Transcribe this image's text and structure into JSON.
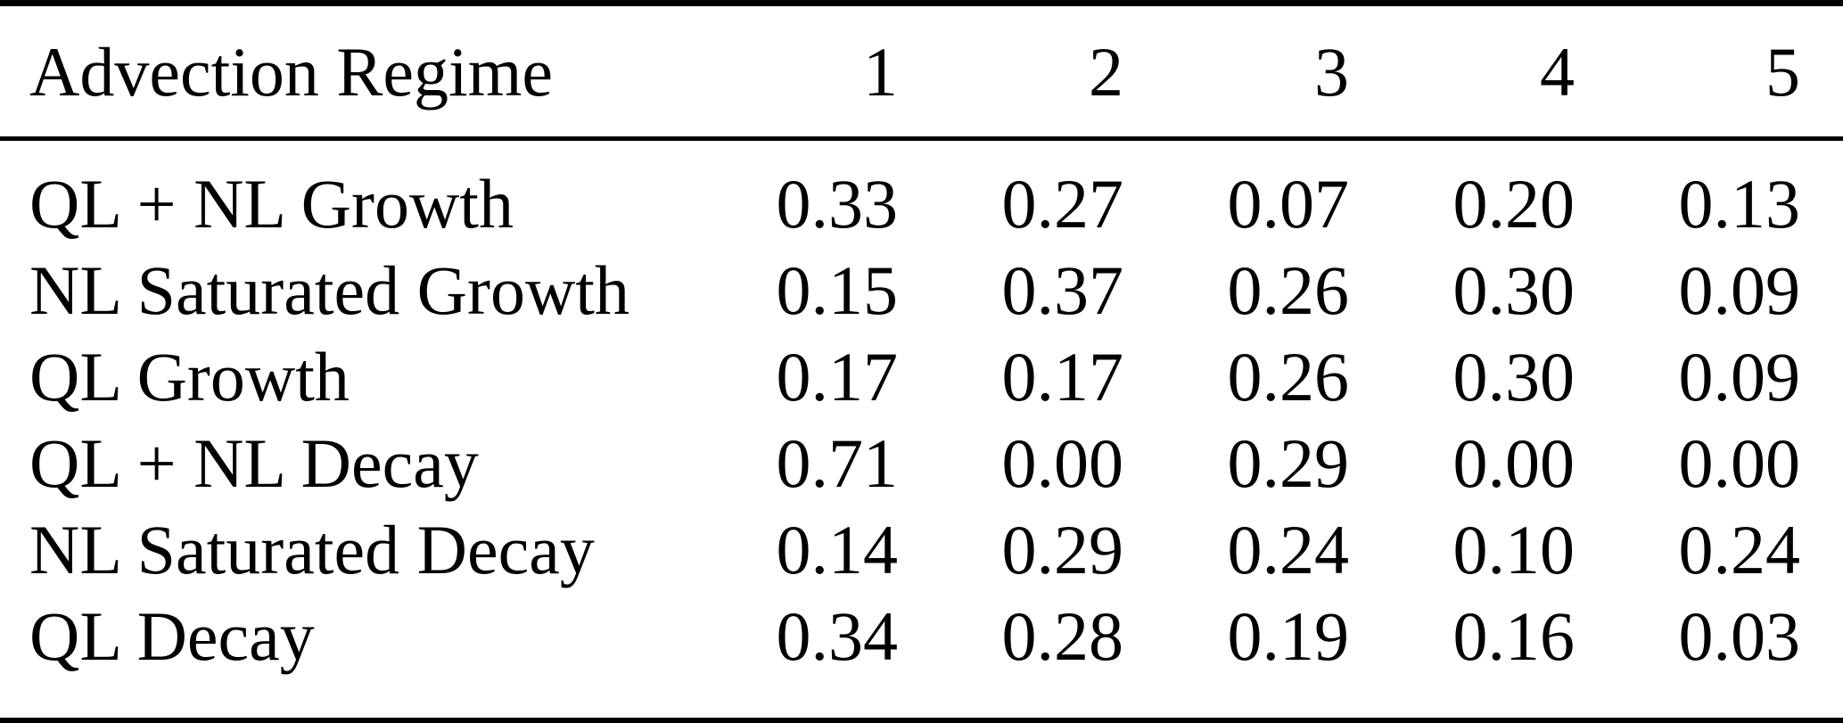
{
  "table": {
    "header": {
      "label": "Advection Regime",
      "columns": [
        "1",
        "2",
        "3",
        "4",
        "5"
      ]
    },
    "rows": [
      {
        "label": "QL + NL Growth",
        "values": [
          "0.33",
          "0.27",
          "0.07",
          "0.20",
          "0.13"
        ]
      },
      {
        "label": "NL Saturated Growth",
        "values": [
          "0.15",
          "0.37",
          "0.26",
          "0.30",
          "0.09"
        ]
      },
      {
        "label": "QL Growth",
        "values": [
          "0.17",
          "0.17",
          "0.26",
          "0.30",
          "0.09"
        ]
      },
      {
        "label": "QL + NL Decay",
        "values": [
          "0.71",
          "0.00",
          "0.29",
          "0.00",
          "0.00"
        ]
      },
      {
        "label": "NL Saturated Decay",
        "values": [
          "0.14",
          "0.29",
          "0.24",
          "0.10",
          "0.24"
        ]
      },
      {
        "label": "QL Decay",
        "values": [
          "0.34",
          "0.28",
          "0.19",
          "0.16",
          "0.03"
        ]
      }
    ]
  },
  "colors": {
    "background": "#ffffff",
    "text": "#000000",
    "rule": "#000000"
  },
  "chart_data": {
    "type": "table",
    "title": "Advection Regime",
    "columns": [
      "1",
      "2",
      "3",
      "4",
      "5"
    ],
    "row_labels": [
      "QL + NL Growth",
      "NL Saturated Growth",
      "QL Growth",
      "QL + NL Decay",
      "NL Saturated Decay",
      "QL Decay"
    ],
    "values": [
      [
        0.33,
        0.27,
        0.07,
        0.2,
        0.13
      ],
      [
        0.15,
        0.37,
        0.26,
        0.3,
        0.09
      ],
      [
        0.17,
        0.17,
        0.26,
        0.3,
        0.09
      ],
      [
        0.71,
        0.0,
        0.29,
        0.0,
        0.0
      ],
      [
        0.14,
        0.29,
        0.24,
        0.1,
        0.24
      ],
      [
        0.34,
        0.28,
        0.19,
        0.16,
        0.03
      ]
    ]
  }
}
